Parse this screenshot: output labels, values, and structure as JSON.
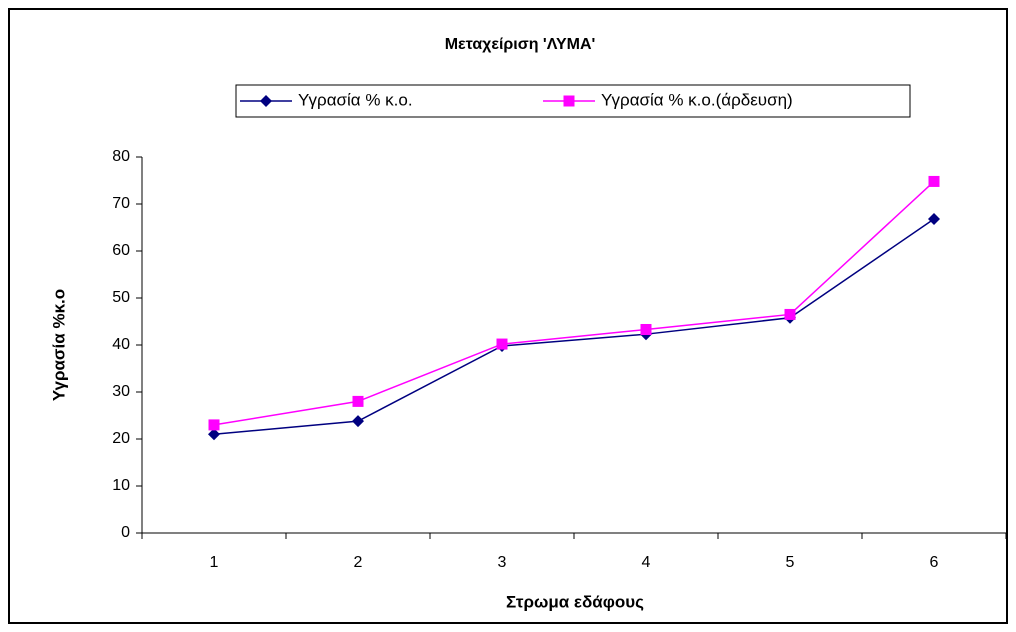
{
  "chart_data": {
    "type": "line",
    "title": "Μεταχείριση 'ΛΥΜΑ'",
    "x_label": "Στρωμα εδάφους",
    "y_label": "Υγρασία %κ.ο",
    "categories": [
      "1",
      "2",
      "3",
      "4",
      "5",
      "6"
    ],
    "series": [
      {
        "name": "Υγρασία % κ.ο.",
        "color": "#000080",
        "marker": "diamond",
        "values": [
          21,
          23.8,
          39.8,
          42.3,
          45.8,
          66.8
        ]
      },
      {
        "name": "Υγρασία % κ.ο.(άρδευση)",
        "color": "#ff00ff",
        "marker": "square",
        "values": [
          23,
          28,
          40.2,
          43.3,
          46.5,
          74.8
        ]
      }
    ],
    "ylim": [
      0,
      80
    ],
    "yticks": [
      0,
      10,
      20,
      30,
      40,
      50,
      60,
      70,
      80
    ],
    "grid": false,
    "legend": "top"
  }
}
